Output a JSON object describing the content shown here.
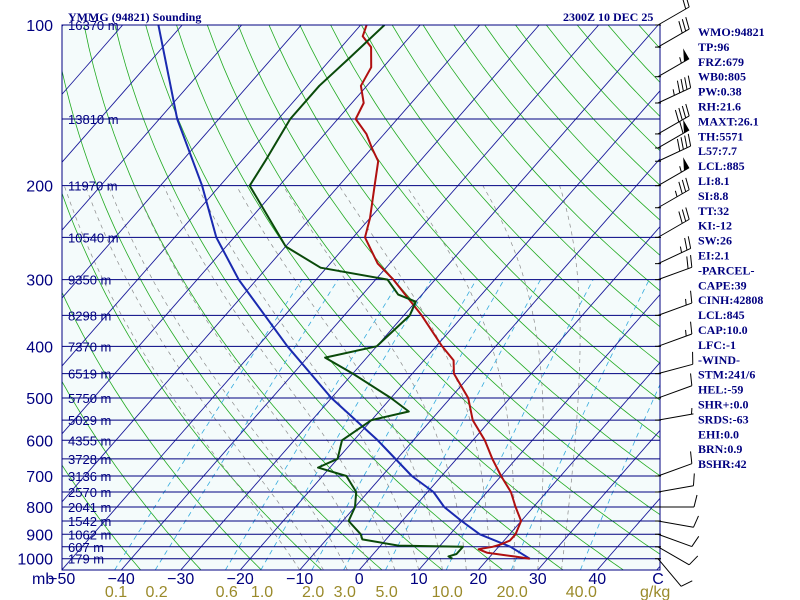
{
  "header": {
    "station": "YMMG (94821) Sounding",
    "time": "2300Z 10 DEC 25"
  },
  "colors": {
    "background": "#ffffff",
    "plot_bg": "#f4fbfb",
    "isobar": "#000080",
    "isotherm": "#1a1a9a",
    "dry_adiabat": "#22aa22",
    "moist_adiabat": "#8a8a8a",
    "mixing_ratio": "#33aadd",
    "temperature": "#b01010",
    "dewpoint": "#0a4a0a",
    "parcel": "#1a2ab0",
    "wind": "#000000"
  },
  "chart_data": {
    "type": "skew-t",
    "title": "YMMG (94821) Sounding",
    "pressure_unit_label": "mb",
    "mixing_ratio_unit_label": "g/kg",
    "pressure_levels": [
      100,
      200,
      300,
      400,
      500,
      600,
      700,
      800,
      900,
      1000
    ],
    "pressure_tick_labels": [
      "100",
      "200",
      "300",
      "400",
      "500",
      "600",
      "700",
      "800",
      "900",
      "1000"
    ],
    "height_labels": [
      {
        "p": 100,
        "label": "16370 m"
      },
      {
        "p": 150,
        "label": "13810 m"
      },
      {
        "p": 200,
        "label": "11970 m"
      },
      {
        "p": 250,
        "label": "10540 m"
      },
      {
        "p": 300,
        "label": "9350 m"
      },
      {
        "p": 350,
        "label": "8298 m"
      },
      {
        "p": 400,
        "label": "7370 m"
      },
      {
        "p": 450,
        "label": "6519 m"
      },
      {
        "p": 500,
        "label": "5750 m"
      },
      {
        "p": 550,
        "label": "5029 m"
      },
      {
        "p": 600,
        "label": "4355 m"
      },
      {
        "p": 650,
        "label": "3728 m"
      },
      {
        "p": 700,
        "label": "3136 m"
      },
      {
        "p": 750,
        "label": "2570 m"
      },
      {
        "p": 800,
        "label": "2041 m"
      },
      {
        "p": 850,
        "label": "1542 m"
      },
      {
        "p": 900,
        "label": "1062 m"
      },
      {
        "p": 950,
        "label": "607 m"
      },
      {
        "p": 1000,
        "label": "179 m"
      }
    ],
    "temperature_ticks": [
      -50,
      -40,
      -30,
      -20,
      -10,
      0,
      10,
      20,
      30,
      40
    ],
    "temperature_tick_labels": [
      "−50",
      "−40",
      "−30",
      "−20",
      "−10",
      "0",
      "10",
      "20",
      "30",
      "40"
    ],
    "mixing_ratio_labels": [
      "0.1",
      "0.2",
      "0.6",
      "1.0",
      "2.0",
      "3.0",
      "5.0",
      "10.0",
      "20.0",
      "40.0"
    ],
    "xlim": [
      -50,
      50
    ],
    "ylim": [
      1050,
      100
    ],
    "temperature_profile": [
      {
        "p": 1000,
        "t": 27
      },
      {
        "p": 990,
        "t": 24
      },
      {
        "p": 975,
        "t": 19
      },
      {
        "p": 960,
        "t": 17
      },
      {
        "p": 950,
        "t": 19
      },
      {
        "p": 940,
        "t": 20
      },
      {
        "p": 925,
        "t": 21
      },
      {
        "p": 900,
        "t": 21
      },
      {
        "p": 850,
        "t": 20
      },
      {
        "p": 800,
        "t": 17
      },
      {
        "p": 750,
        "t": 14
      },
      {
        "p": 700,
        "t": 10
      },
      {
        "p": 650,
        "t": 6
      },
      {
        "p": 600,
        "t": 2
      },
      {
        "p": 550,
        "t": -3
      },
      {
        "p": 500,
        "t": -7
      },
      {
        "p": 450,
        "t": -13
      },
      {
        "p": 425,
        "t": -15
      },
      {
        "p": 400,
        "t": -19
      },
      {
        "p": 350,
        "t": -27
      },
      {
        "p": 300,
        "t": -37
      },
      {
        "p": 280,
        "t": -42
      },
      {
        "p": 250,
        "t": -48
      },
      {
        "p": 230,
        "t": -50
      },
      {
        "p": 200,
        "t": -54
      },
      {
        "p": 180,
        "t": -57
      },
      {
        "p": 170,
        "t": -60
      },
      {
        "p": 160,
        "t": -63
      },
      {
        "p": 150,
        "t": -67
      },
      {
        "p": 140,
        "t": -68
      },
      {
        "p": 130,
        "t": -71
      },
      {
        "p": 120,
        "t": -72
      },
      {
        "p": 110,
        "t": -75
      },
      {
        "p": 105,
        "t": -78
      },
      {
        "p": 100,
        "t": -79
      }
    ],
    "dewpoint_profile": [
      {
        "p": 1000,
        "t": 14
      },
      {
        "p": 990,
        "t": 13
      },
      {
        "p": 980,
        "t": 14
      },
      {
        "p": 950,
        "t": 14
      },
      {
        "p": 945,
        "t": 3
      },
      {
        "p": 920,
        "t": -4
      },
      {
        "p": 900,
        "t": -5
      },
      {
        "p": 850,
        "t": -9
      },
      {
        "p": 800,
        "t": -10
      },
      {
        "p": 750,
        "t": -12
      },
      {
        "p": 700,
        "t": -16
      },
      {
        "p": 675,
        "t": -22
      },
      {
        "p": 650,
        "t": -20
      },
      {
        "p": 600,
        "t": -22
      },
      {
        "p": 550,
        "t": -20
      },
      {
        "p": 530,
        "t": -15
      },
      {
        "p": 500,
        "t": -20
      },
      {
        "p": 450,
        "t": -30
      },
      {
        "p": 420,
        "t": -37
      },
      {
        "p": 400,
        "t": -30
      },
      {
        "p": 350,
        "t": -29
      },
      {
        "p": 330,
        "t": -30
      },
      {
        "p": 320,
        "t": -34
      },
      {
        "p": 300,
        "t": -38
      },
      {
        "p": 285,
        "t": -51
      },
      {
        "p": 260,
        "t": -60
      },
      {
        "p": 230,
        "t": -67
      },
      {
        "p": 200,
        "t": -75
      },
      {
        "p": 180,
        "t": -76
      },
      {
        "p": 150,
        "t": -78
      },
      {
        "p": 130,
        "t": -78
      },
      {
        "p": 115,
        "t": -77
      },
      {
        "p": 100,
        "t": -76
      }
    ],
    "parcel_profile": [
      {
        "p": 1000,
        "t": 27
      },
      {
        "p": 950,
        "t": 22
      },
      {
        "p": 900,
        "t": 15
      },
      {
        "p": 850,
        "t": 10
      },
      {
        "p": 800,
        "t": 5
      },
      {
        "p": 750,
        "t": 1
      },
      {
        "p": 700,
        "t": -5
      },
      {
        "p": 600,
        "t": -16
      },
      {
        "p": 500,
        "t": -30
      },
      {
        "p": 400,
        "t": -45
      },
      {
        "p": 300,
        "t": -63
      },
      {
        "p": 250,
        "t": -73
      },
      {
        "p": 200,
        "t": -83
      },
      {
        "p": 150,
        "t": -97
      },
      {
        "p": 100,
        "t": -114
      }
    ],
    "wind_barbs": [
      {
        "p": 100,
        "dir": 240,
        "spd": 20
      },
      {
        "p": 110,
        "dir": 240,
        "spd": 30
      },
      {
        "p": 125,
        "dir": 240,
        "spd": 55
      },
      {
        "p": 140,
        "dir": 245,
        "spd": 45
      },
      {
        "p": 160,
        "dir": 240,
        "spd": 40
      },
      {
        "p": 170,
        "dir": 240,
        "spd": 60
      },
      {
        "p": 180,
        "dir": 245,
        "spd": 40
      },
      {
        "p": 200,
        "dir": 240,
        "spd": 55
      },
      {
        "p": 220,
        "dir": 240,
        "spd": 35
      },
      {
        "p": 250,
        "dir": 240,
        "spd": 30
      },
      {
        "p": 280,
        "dir": 245,
        "spd": 25
      },
      {
        "p": 300,
        "dir": 250,
        "spd": 20
      },
      {
        "p": 350,
        "dir": 250,
        "spd": 15
      },
      {
        "p": 400,
        "dir": 250,
        "spd": 15
      },
      {
        "p": 450,
        "dir": 255,
        "spd": 10
      },
      {
        "p": 500,
        "dir": 250,
        "spd": 10
      },
      {
        "p": 550,
        "dir": 260,
        "spd": 5
      },
      {
        "p": 700,
        "dir": 250,
        "spd": 10
      },
      {
        "p": 750,
        "dir": 260,
        "spd": 10
      },
      {
        "p": 800,
        "dir": 270,
        "spd": 10
      },
      {
        "p": 850,
        "dir": 280,
        "spd": 10
      },
      {
        "p": 900,
        "dir": 290,
        "spd": 10
      },
      {
        "p": 950,
        "dir": 300,
        "spd": 10
      },
      {
        "p": 1000,
        "dir": 320,
        "spd": 10
      }
    ],
    "grid": true
  },
  "indices": [
    "WMO:94821",
    "TP:96",
    "FRZ:679",
    "WB0:805",
    "PW:0.38",
    "RH:21.6",
    "MAXT:26.1",
    "TH:5571",
    "L57:7.7",
    "LCL:885",
    "LI:8.1",
    "SI:8.8",
    "TT:32",
    "KI:-12",
    "SW:26",
    "EI:2.1",
    "-PARCEL-",
    "CAPE:39",
    "CINH:42808",
    "LCL:845",
    "CAP:10.0",
    "LFC:-1",
    "-WIND-",
    "STM:241/6",
    "HEL:-59",
    "SHR+:0.0",
    "SRDS:-63",
    "EHI:0.0",
    "BRN:0.9",
    "BSHR:42"
  ]
}
